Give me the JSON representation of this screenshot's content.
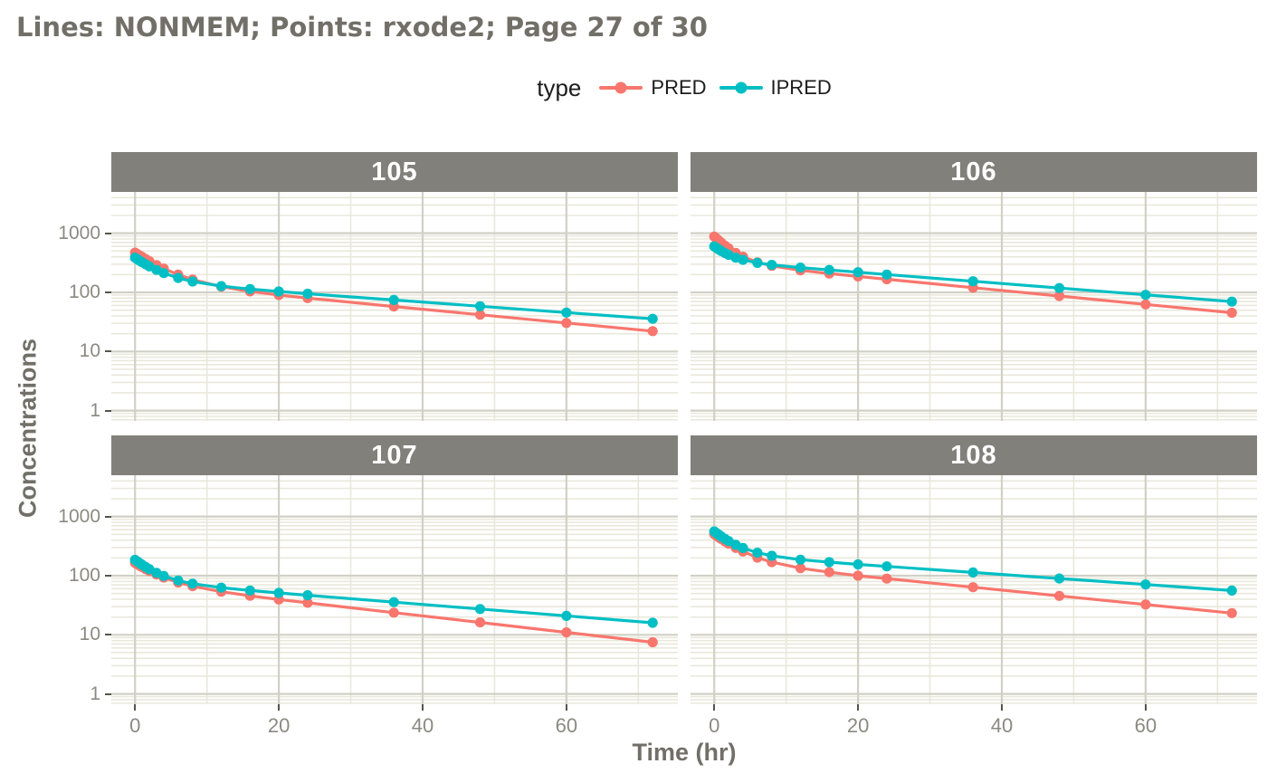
{
  "title": "Lines: NONMEM; Points: rxode2; Page 27 of 30",
  "legend": {
    "title": "type",
    "items": [
      {
        "label": "PRED",
        "color": "#F8766D"
      },
      {
        "label": "IPRED",
        "color": "#00BFC4"
      }
    ]
  },
  "axes": {
    "x_label": "Time (hr)",
    "y_label": "Concentrations",
    "x_ticks": [
      0,
      20,
      40,
      60
    ],
    "y_ticks": [
      1,
      10,
      100,
      1000
    ]
  },
  "colors": {
    "strip_fill": "#81807A",
    "strip_text": "#FFFFFF",
    "title_text": "#716F67",
    "tick_text": "#8B8A81",
    "tick_mark": "#55544C",
    "grid_major": "#D1D0C5",
    "grid_minor": "#E9E8DC",
    "panel_bg": "#FFFFFF",
    "pred": "#F8766D",
    "ipred": "#00BFC4"
  },
  "chart_data": {
    "type": "line",
    "subtype": "lines-with-points",
    "log_y": true,
    "x_domain": [
      -3.3,
      75.5
    ],
    "y_domain": [
      0.67,
      5000
    ],
    "grid": "on",
    "legend_position": "top-center",
    "x": [
      0,
      0.25,
      0.5,
      0.75,
      1,
      1.5,
      2,
      3,
      4,
      6,
      8,
      12,
      16,
      20,
      24,
      36,
      48,
      60,
      72
    ],
    "facets": [
      {
        "label": "105",
        "series": [
          {
            "name": "PRED",
            "color": "#F8766D",
            "values": [
              470,
              449.6,
              430.4,
              412.3,
              395.3,
              364.1,
              336.3,
              289.7,
              252.6,
              199.3,
              164.5,
              124.9,
              103.9,
              90.2,
              80.0,
              57.6,
              41.9,
              30.4,
              22.1
            ]
          },
          {
            "name": "IPRED",
            "color": "#00BFC4",
            "values": [
              385,
              367.6,
              351.4,
              336.3,
              322.3,
              296.9,
              275.0,
              239.3,
              212.1,
              175.1,
              152.6,
              127.6,
              113.7,
              103.6,
              94.9,
              74.4,
              58.2,
              45.6,
              35.7
            ]
          }
        ]
      },
      {
        "label": "106",
        "series": [
          {
            "name": "PRED",
            "color": "#F8766D",
            "values": [
              880,
              824.5,
              774.2,
              728.3,
              686.8,
              614.5,
              554.7,
              463.7,
              400.1,
              322.6,
              280.3,
              235.5,
              208.1,
              185.8,
              166.6,
              120.2,
              86.8,
              62.6,
              45.2
            ]
          },
          {
            "name": "IPRED",
            "color": "#00BFC4",
            "values": [
              600,
              570.4,
              543.9,
              519.9,
              498.4,
              461.4,
              431.1,
              385.7,
              354.3,
              315.4,
              292.2,
              262.3,
              239.2,
              219.0,
              200.5,
              154.0,
              118.3,
              90.8,
              69.7
            ]
          }
        ]
      },
      {
        "label": "107",
        "series": [
          {
            "name": "PRED",
            "color": "#F8766D",
            "values": [
              165,
              157.9,
              151.3,
              145.1,
              139.3,
              128.9,
              119.8,
              104.7,
              93.1,
              76.8,
              66.3,
              53.6,
              45.7,
              39.5,
              34.8,
              23.7,
              16.2,
              11.0,
              7.5
            ]
          },
          {
            "name": "IPRED",
            "color": "#00BFC4",
            "values": [
              185,
              175.8,
              167.2,
              159.5,
              152.2,
              139.5,
              128.6,
              111.5,
              99.0,
              82.8,
              73.3,
              62.8,
              56.3,
              51.1,
              46.7,
              35.7,
              27.3,
              20.9,
              16.0
            ]
          }
        ]
      },
      {
        "label": "108",
        "series": [
          {
            "name": "PRED",
            "color": "#F8766D",
            "values": [
              505,
              479.9,
              456.6,
              434.9,
              414.7,
              378.2,
              346.6,
              295.1,
              255.9,
              202.4,
              169.8,
              134.1,
              114.5,
              100.0,
              89.4,
              63.9,
              45.6,
              32.6,
              23.3
            ]
          },
          {
            "name": "IPRED",
            "color": "#00BFC4",
            "values": [
              560,
              531.2,
              504.8,
              480.4,
              458.1,
              418.5,
              385.1,
              332.4,
              294.0,
              244.9,
              216.7,
              186.8,
              169.3,
              155.4,
              143.6,
              113.5,
              89.7,
              70.9,
              56.1
            ]
          }
        ]
      }
    ]
  }
}
